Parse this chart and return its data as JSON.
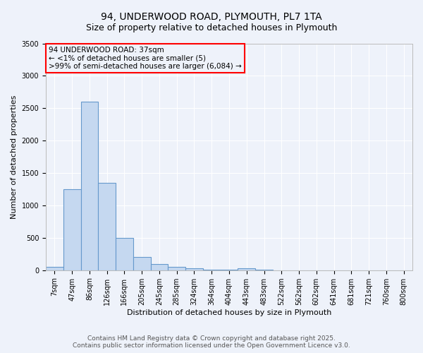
{
  "title": "94, UNDERWOOD ROAD, PLYMOUTH, PL7 1TA",
  "subtitle": "Size of property relative to detached houses in Plymouth",
  "xlabel": "Distribution of detached houses by size in Plymouth",
  "ylabel": "Number of detached properties",
  "categories": [
    "7sqm",
    "47sqm",
    "86sqm",
    "126sqm",
    "166sqm",
    "205sqm",
    "245sqm",
    "285sqm",
    "324sqm",
    "364sqm",
    "404sqm",
    "443sqm",
    "483sqm",
    "522sqm",
    "562sqm",
    "602sqm",
    "641sqm",
    "681sqm",
    "721sqm",
    "760sqm",
    "800sqm"
  ],
  "values": [
    50,
    1250,
    2600,
    1350,
    500,
    200,
    100,
    50,
    30,
    10,
    5,
    30,
    5,
    0,
    0,
    0,
    0,
    0,
    0,
    0,
    0
  ],
  "bar_color": "#c5d8f0",
  "bar_edge_color": "#6699cc",
  "ylim": [
    0,
    3500
  ],
  "annotation_box_text": "94 UNDERWOOD ROAD: 37sqm\n← <1% of detached houses are smaller (5)\n>99% of semi-detached houses are larger (6,084) →",
  "background_color": "#eef2fa",
  "grid_color": "#ffffff",
  "footer_line1": "Contains HM Land Registry data © Crown copyright and database right 2025.",
  "footer_line2": "Contains public sector information licensed under the Open Government Licence v3.0.",
  "title_fontsize": 10,
  "subtitle_fontsize": 9,
  "axis_label_fontsize": 8,
  "tick_fontsize": 7,
  "annotation_fontsize": 7.5,
  "footer_fontsize": 6.5
}
